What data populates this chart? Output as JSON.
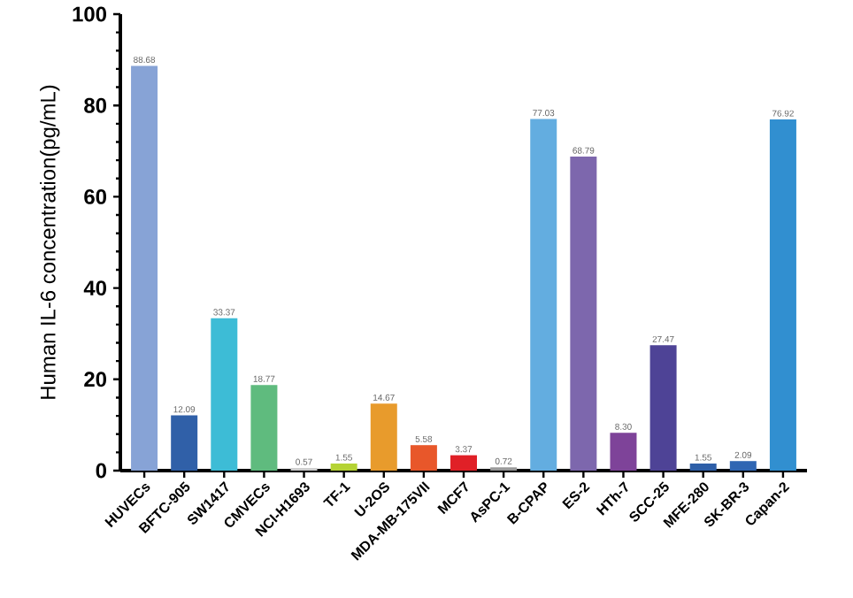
{
  "chart_data": {
    "type": "bar",
    "ylabel": "Human IL-6 concentration(pg/mL)",
    "categories": [
      "HUVECs",
      "BFTC-905",
      "SW1417",
      "CMVECs",
      "NCI-H1693",
      "TF-1",
      "U-2OS",
      "MDA-MB-175VII",
      "MCF7",
      "AsPC-1",
      "B-CPAP",
      "ES-2",
      "HTh-7",
      "SCC-25",
      "MFE-280",
      "SK-BR-3",
      "Capan-2"
    ],
    "values": [
      88.68,
      12.09,
      33.37,
      18.77,
      0.57,
      1.55,
      14.67,
      5.58,
      3.37,
      0.72,
      77.03,
      68.79,
      8.3,
      27.47,
      1.55,
      2.09,
      76.92
    ],
    "value_labels": [
      "88.68",
      "12.09",
      "33.37",
      "18.77",
      "0.57",
      "1.55",
      "14.67",
      "5.58",
      "3.37",
      "0.72",
      "77.03",
      "68.79",
      "8.30",
      "27.47",
      "1.55",
      "2.09",
      "76.92"
    ],
    "colors": [
      "#87a3d6",
      "#3060a8",
      "#3dbcd6",
      "#5fbb7e",
      "#cccccc",
      "#b5d334",
      "#e89b2c",
      "#e8572a",
      "#e02027",
      "#999999",
      "#63ade0",
      "#7d67ad",
      "#7e4399",
      "#4e4396",
      "#2e5fa8",
      "#2f66b3",
      "#318fd0"
    ],
    "ylim": [
      0,
      100
    ],
    "yticks": [
      0,
      20,
      40,
      60,
      80,
      100
    ],
    "grid": false
  }
}
